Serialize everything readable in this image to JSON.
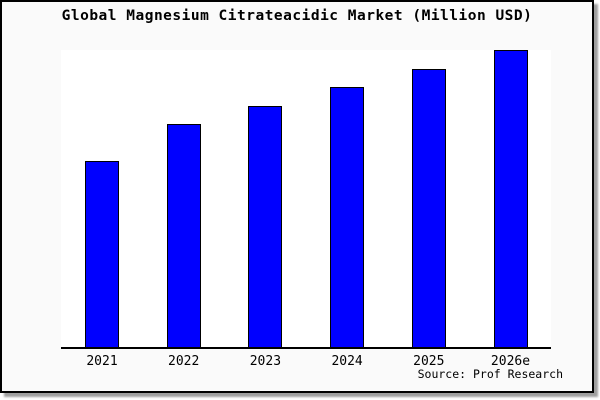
{
  "chart_data": {
    "type": "bar",
    "title": "Global Magnesium Citrateacidic Market (Million USD)",
    "categories": [
      "2021",
      "2022",
      "2023",
      "2024",
      "2025",
      "2026e"
    ],
    "values": [
      100,
      120,
      130,
      140,
      150,
      160
    ],
    "values_estimated_from_pixels": true,
    "xlabel": "",
    "ylabel": "",
    "ylim": [
      0,
      160
    ],
    "y_axis_labels_visible": false,
    "grid": false,
    "legend": false,
    "bar_color": "#0000ff",
    "bar_border_color": "#000000",
    "axis_color": "#000000",
    "plot_background": "#ffffff"
  },
  "footer": {
    "source": "Source: Prof Research"
  },
  "colors": {
    "page_background": "#fafafa",
    "frame_border": "#000000",
    "frame_shadow": "#9e9e9e",
    "text": "#000000"
  }
}
